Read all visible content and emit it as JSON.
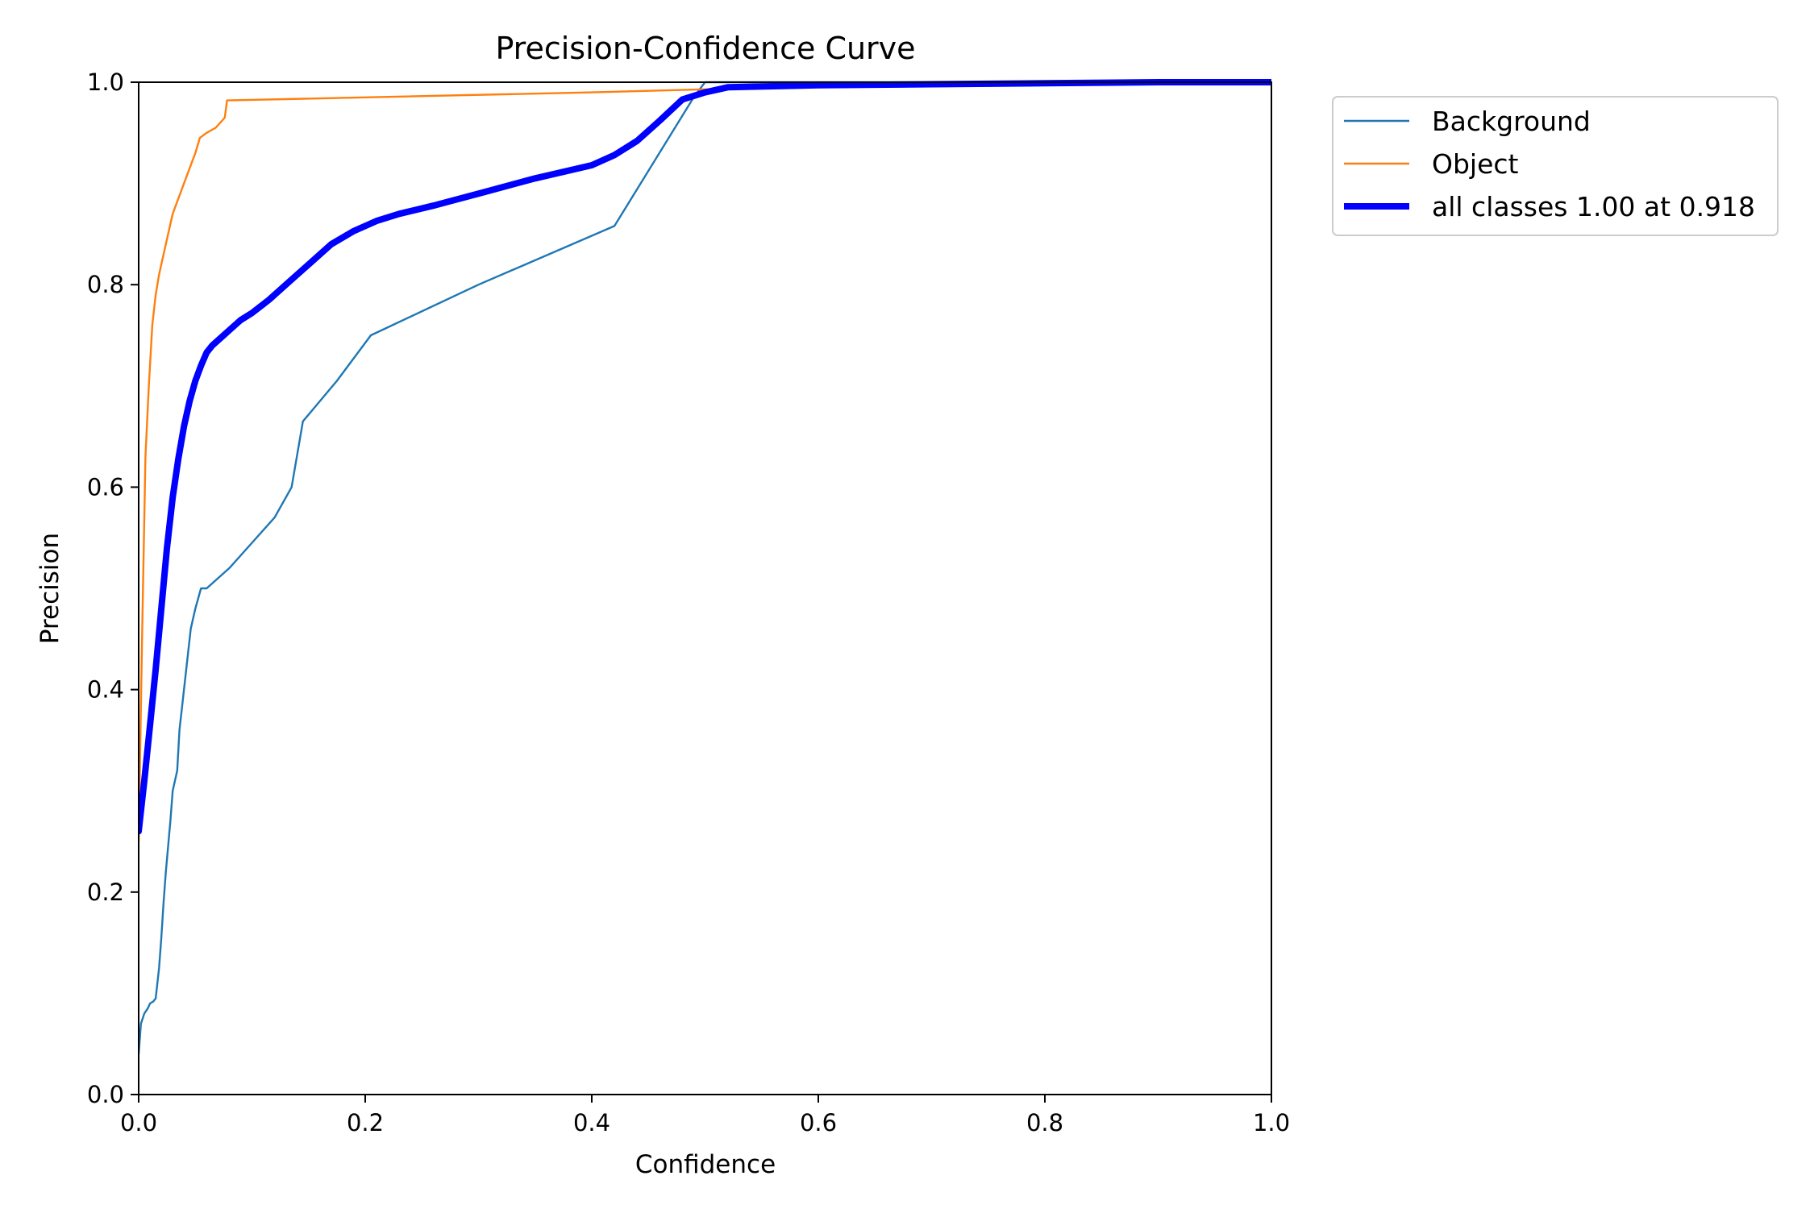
{
  "chart_data": {
    "type": "line",
    "title": "Precision-Confidence Curve",
    "xlabel": "Confidence",
    "ylabel": "Precision",
    "xlim": [
      0.0,
      1.0
    ],
    "ylim": [
      0.0,
      1.0
    ],
    "x_ticks": [
      "0.0",
      "0.2",
      "0.4",
      "0.6",
      "0.8",
      "1.0"
    ],
    "y_ticks": [
      "0.0",
      "0.2",
      "0.4",
      "0.6",
      "0.8",
      "1.0"
    ],
    "grid": false,
    "legend_position": "outside-top-right",
    "series": [
      {
        "name": "Background",
        "color": "#1f77b4",
        "x": [
          0.0,
          0.002,
          0.005,
          0.008,
          0.01,
          0.013,
          0.015,
          0.018,
          0.02,
          0.022,
          0.024,
          0.026,
          0.028,
          0.03,
          0.032,
          0.034,
          0.036,
          0.038,
          0.04,
          0.043,
          0.046,
          0.05,
          0.055,
          0.06,
          0.08,
          0.1,
          0.12,
          0.135,
          0.145,
          0.175,
          0.205,
          0.3,
          0.42,
          0.49,
          0.5,
          0.52,
          0.6,
          0.7,
          0.8,
          0.9,
          1.0
        ],
        "y": [
          0.04,
          0.07,
          0.08,
          0.085,
          0.09,
          0.092,
          0.095,
          0.125,
          0.155,
          0.19,
          0.22,
          0.245,
          0.27,
          0.3,
          0.31,
          0.32,
          0.36,
          0.38,
          0.4,
          0.43,
          0.46,
          0.48,
          0.5,
          0.5,
          0.52,
          0.545,
          0.57,
          0.6,
          0.665,
          0.705,
          0.75,
          0.8,
          0.858,
          0.985,
          1.0,
          1.0,
          1.0,
          1.0,
          1.0,
          1.0,
          1.0
        ]
      },
      {
        "name": "Object",
        "color": "#ff7f0e",
        "x": [
          0.0,
          0.003,
          0.006,
          0.009,
          0.012,
          0.015,
          0.018,
          0.021,
          0.024,
          0.027,
          0.03,
          0.035,
          0.04,
          0.045,
          0.05,
          0.054,
          0.06,
          0.068,
          0.076,
          0.078,
          0.2,
          0.4,
          0.5,
          0.6,
          0.8,
          1.0
        ],
        "y": [
          0.25,
          0.45,
          0.63,
          0.7,
          0.76,
          0.79,
          0.81,
          0.825,
          0.84,
          0.855,
          0.87,
          0.885,
          0.9,
          0.915,
          0.93,
          0.945,
          0.95,
          0.955,
          0.965,
          0.982,
          0.985,
          0.99,
          0.993,
          0.995,
          0.997,
          1.0
        ]
      },
      {
        "name": "all classes 1.00 at 0.918",
        "color": "#0000ff",
        "x": [
          0.0,
          0.005,
          0.01,
          0.015,
          0.02,
          0.025,
          0.03,
          0.035,
          0.04,
          0.045,
          0.05,
          0.055,
          0.06,
          0.065,
          0.07,
          0.075,
          0.08,
          0.09,
          0.1,
          0.115,
          0.13,
          0.15,
          0.17,
          0.19,
          0.21,
          0.23,
          0.26,
          0.3,
          0.35,
          0.4,
          0.42,
          0.44,
          0.46,
          0.48,
          0.5,
          0.52,
          0.6,
          0.7,
          0.8,
          0.9,
          0.918,
          1.0
        ],
        "y": [
          0.26,
          0.31,
          0.365,
          0.42,
          0.48,
          0.54,
          0.59,
          0.628,
          0.66,
          0.685,
          0.705,
          0.72,
          0.733,
          0.74,
          0.745,
          0.75,
          0.755,
          0.765,
          0.772,
          0.785,
          0.8,
          0.82,
          0.84,
          0.853,
          0.863,
          0.87,
          0.878,
          0.89,
          0.905,
          0.918,
          0.928,
          0.942,
          0.962,
          0.983,
          0.99,
          0.995,
          0.997,
          0.998,
          0.999,
          1.0,
          1.0,
          1.0
        ],
        "linewidth": "thick"
      }
    ]
  }
}
